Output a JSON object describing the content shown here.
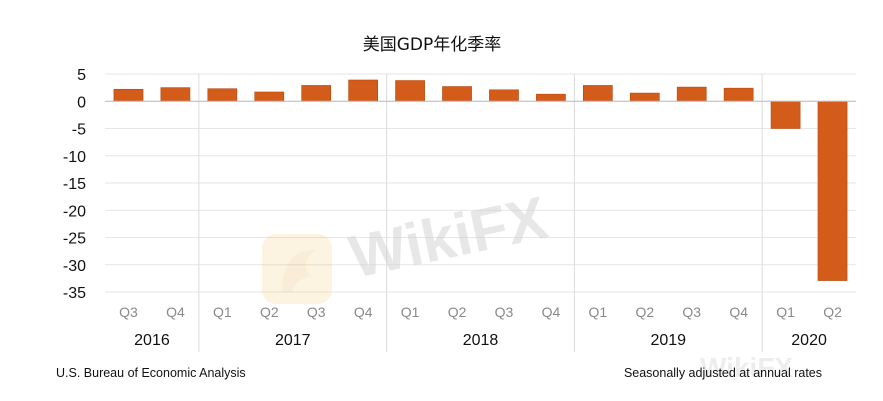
{
  "chart_data": {
    "type": "bar",
    "title": "美国GDP年化季率",
    "categories": [
      "Q3",
      "Q4",
      "Q1",
      "Q2",
      "Q3",
      "Q4",
      "Q1",
      "Q2",
      "Q3",
      "Q4",
      "Q1",
      "Q2",
      "Q3",
      "Q4",
      "Q1",
      "Q2"
    ],
    "years": [
      {
        "label": "2016",
        "span": 2
      },
      {
        "label": "2017",
        "span": 4
      },
      {
        "label": "2018",
        "span": 4
      },
      {
        "label": "2019",
        "span": 4
      },
      {
        "label": "2020",
        "span": 2
      }
    ],
    "values": [
      2.2,
      2.5,
      2.3,
      1.7,
      2.9,
      3.9,
      3.8,
      2.7,
      2.1,
      1.3,
      2.9,
      1.5,
      2.6,
      2.4,
      -5.0,
      -32.9
    ],
    "yticks": [
      5,
      0,
      -5,
      -10,
      -15,
      -20,
      -25,
      -30,
      -35
    ],
    "ylim": [
      -35,
      5
    ],
    "grid": true,
    "bar_color": "#d35c1a",
    "source": "U.S. Bureau of Economic Analysis",
    "note": "Seasonally adjusted at annual rates"
  },
  "watermark": "WikiFX"
}
